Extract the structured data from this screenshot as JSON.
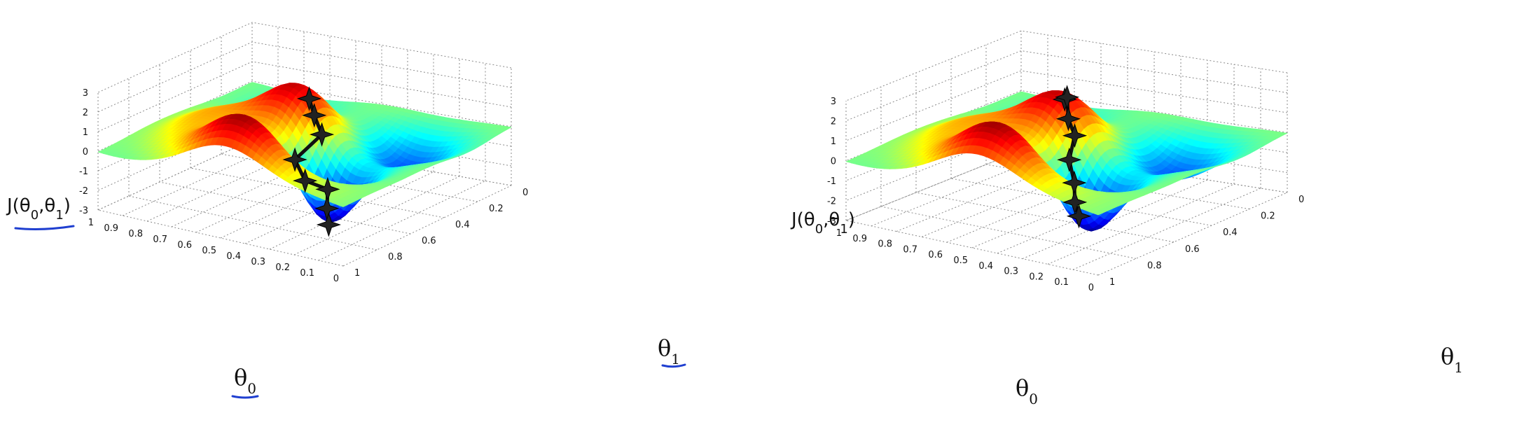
{
  "chart_data": [
    {
      "type": "surface",
      "zlabel": "J(θ0,θ1)",
      "xlabel": "θ0",
      "ylabel": "θ1",
      "z_ticks": [
        "3",
        "2",
        "1",
        "0",
        "-1",
        "-2",
        "-3"
      ],
      "x_ticks": [
        "1",
        "0.9",
        "0.8",
        "0.7",
        "0.6",
        "0.5",
        "0.4",
        "0.3",
        "0.2",
        "0.1",
        "0"
      ],
      "y_ticks": [
        "0",
        "0.2",
        "0.4",
        "0.6",
        "0.8",
        "1"
      ],
      "zlim": [
        -3,
        3
      ],
      "xlim": [
        0,
        1
      ],
      "ylim": [
        0,
        1
      ],
      "colormap": "jet",
      "grid": true,
      "handwritten_underline_color": "#1f3fd0",
      "underlined_labels": [
        "zlabel",
        "xlabel",
        "ylabel"
      ],
      "path": {
        "name": "",
        "color": "#111111",
        "marker": "star",
        "points": [
          {
            "theta0": 0.5,
            "theta1": 0.55,
            "J": 2.0
          },
          {
            "theta0": 0.48,
            "theta1": 0.55,
            "J": 1.2
          },
          {
            "theta0": 0.45,
            "theta1": 0.55,
            "J": 0.3
          },
          {
            "theta0": 0.48,
            "theta1": 0.43,
            "J": -0.6
          },
          {
            "theta0": 0.42,
            "theta1": 0.4,
            "J": -1.4
          },
          {
            "theta0": 0.33,
            "theta1": 0.4,
            "J": -1.6
          },
          {
            "theta0": 0.3,
            "theta1": 0.35,
            "J": -2.3
          },
          {
            "theta0": 0.28,
            "theta1": 0.33,
            "J": -3.0
          }
        ]
      }
    },
    {
      "type": "surface",
      "zlabel": "J(θ0,θ1)",
      "xlabel": "θ0",
      "ylabel": "θ1",
      "z_ticks": [
        "3",
        "2",
        "1",
        "0",
        "-1",
        "-2",
        "-3"
      ],
      "x_ticks": [
        "1",
        "0.9",
        "0.8",
        "0.7",
        "0.6",
        "0.5",
        "0.4",
        "0.3",
        "0.2",
        "0.1",
        "0"
      ],
      "y_ticks": [
        "0",
        "0.2",
        "0.4",
        "0.6",
        "0.8",
        "1"
      ],
      "zlim": [
        -3,
        3
      ],
      "xlim": [
        0,
        1
      ],
      "ylim": [
        0,
        1
      ],
      "colormap": "jet",
      "grid": true,
      "path": {
        "name": "",
        "color": "#111111",
        "marker": "star",
        "points": [
          {
            "theta0": 0.55,
            "theta1": 0.58,
            "J": 2.1
          },
          {
            "theta0": 0.52,
            "theta1": 0.55,
            "J": 2.4
          },
          {
            "theta0": 0.48,
            "theta1": 0.5,
            "J": 1.6
          },
          {
            "theta0": 0.42,
            "theta1": 0.45,
            "J": 1.1
          },
          {
            "theta0": 0.37,
            "theta1": 0.35,
            "J": 0.4
          },
          {
            "theta0": 0.3,
            "theta1": 0.28,
            "J": -0.3
          },
          {
            "theta0": 0.24,
            "theta1": 0.2,
            "J": -0.8
          },
          {
            "theta0": 0.18,
            "theta1": 0.14,
            "J": -1.1
          }
        ]
      }
    }
  ]
}
